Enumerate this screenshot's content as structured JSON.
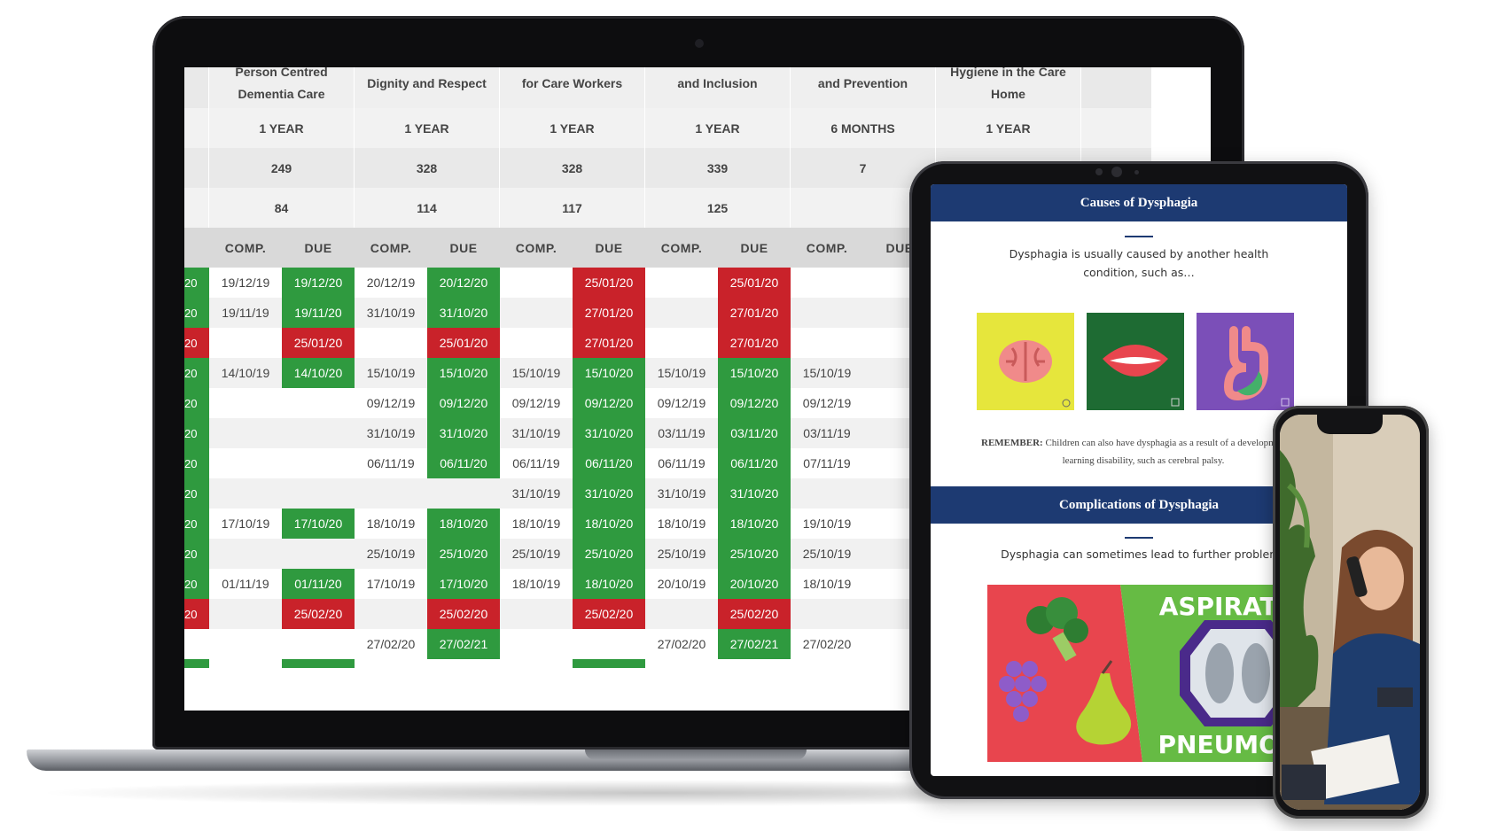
{
  "headers": [
    {
      "line1": "Person Centred",
      "line2": "Dementia Care"
    },
    {
      "line1": "Dignity and Respect",
      "line2": ""
    },
    {
      "line1": "for Care Workers",
      "line2": ""
    },
    {
      "line1": "and Inclusion",
      "line2": ""
    },
    {
      "line1": "and Prevention",
      "line2": ""
    },
    {
      "line1": "Hygiene in the Care",
      "line2": "Home"
    }
  ],
  "frequency": [
    "1 YEAR",
    "1 YEAR",
    "1 YEAR",
    "1 YEAR",
    "6 MONTHS",
    "1 YEAR"
  ],
  "totals": [
    "249",
    "328",
    "328",
    "339",
    "7",
    ""
  ],
  "counts": [
    "84",
    "114",
    "117",
    "125",
    "",
    ""
  ],
  "sub_headers": {
    "comp": "COMP.",
    "due": "DUE"
  },
  "rows": [
    {
      "lead": "20",
      "cells": [
        [
          "19/12/19",
          "19/12/20",
          "g"
        ],
        [
          "20/12/19",
          "20/12/20",
          "g"
        ],
        [
          "",
          "25/01/20",
          "r"
        ],
        [
          "",
          "25/01/20",
          "r"
        ],
        [
          "",
          ""
        ]
      ]
    },
    {
      "lead": "20",
      "cells": [
        [
          "19/11/19",
          "19/11/20",
          "g"
        ],
        [
          "31/10/19",
          "31/10/20",
          "g"
        ],
        [
          "",
          "27/01/20",
          "r"
        ],
        [
          "",
          "27/01/20",
          "r"
        ],
        [
          "",
          ""
        ]
      ]
    },
    {
      "lead": "20",
      "cells": [
        [
          "",
          "25/01/20",
          "r"
        ],
        [
          "",
          "25/01/20",
          "r"
        ],
        [
          "",
          "27/01/20",
          "r"
        ],
        [
          "",
          "27/01/20",
          "r"
        ],
        [
          "",
          ""
        ]
      ]
    },
    {
      "lead": "20",
      "cells": [
        [
          "14/10/19",
          "14/10/20",
          "g"
        ],
        [
          "15/10/19",
          "15/10/20",
          "g"
        ],
        [
          "15/10/19",
          "15/10/20",
          "g"
        ],
        [
          "15/10/19",
          "15/10/20",
          "g"
        ],
        [
          "15/10/19",
          ""
        ]
      ]
    },
    {
      "lead": "20",
      "cells": [
        [
          "",
          ""
        ],
        [
          "09/12/19",
          "09/12/20",
          "g"
        ],
        [
          "09/12/19",
          "09/12/20",
          "g"
        ],
        [
          "09/12/19",
          "09/12/20",
          "g"
        ],
        [
          "09/12/19",
          ""
        ]
      ]
    },
    {
      "lead": "20",
      "cells": [
        [
          "",
          ""
        ],
        [
          "31/10/19",
          "31/10/20",
          "g"
        ],
        [
          "31/10/19",
          "31/10/20",
          "g"
        ],
        [
          "03/11/19",
          "03/11/20",
          "g"
        ],
        [
          "03/11/19",
          ""
        ]
      ]
    },
    {
      "lead": "20",
      "cells": [
        [
          "",
          ""
        ],
        [
          "06/11/19",
          "06/11/20",
          "g"
        ],
        [
          "06/11/19",
          "06/11/20",
          "g"
        ],
        [
          "06/11/19",
          "06/11/20",
          "g"
        ],
        [
          "07/11/19",
          ""
        ]
      ]
    },
    {
      "lead": "20",
      "cells": [
        [
          "",
          ""
        ],
        [
          "",
          ""
        ],
        [
          "31/10/19",
          "31/10/20",
          "g"
        ],
        [
          "31/10/19",
          "31/10/20",
          "g"
        ],
        [
          "",
          ""
        ]
      ]
    },
    {
      "lead": "20",
      "cells": [
        [
          "17/10/19",
          "17/10/20",
          "g"
        ],
        [
          "18/10/19",
          "18/10/20",
          "g"
        ],
        [
          "18/10/19",
          "18/10/20",
          "g"
        ],
        [
          "18/10/19",
          "18/10/20",
          "g"
        ],
        [
          "19/10/19",
          ""
        ]
      ]
    },
    {
      "lead": "20",
      "cells": [
        [
          "",
          ""
        ],
        [
          "25/10/19",
          "25/10/20",
          "g"
        ],
        [
          "25/10/19",
          "25/10/20",
          "g"
        ],
        [
          "25/10/19",
          "25/10/20",
          "g"
        ],
        [
          "25/10/19",
          ""
        ]
      ]
    },
    {
      "lead": "20",
      "cells": [
        [
          "01/11/19",
          "01/11/20",
          "g"
        ],
        [
          "17/10/19",
          "17/10/20",
          "g"
        ],
        [
          "18/10/19",
          "18/10/20",
          "g"
        ],
        [
          "20/10/19",
          "20/10/20",
          "g"
        ],
        [
          "18/10/19",
          ""
        ]
      ]
    },
    {
      "lead": "20",
      "cells": [
        [
          "",
          "25/02/20",
          "r"
        ],
        [
          "",
          "25/02/20",
          "r"
        ],
        [
          "",
          "25/02/20",
          "r"
        ],
        [
          "",
          "25/02/20",
          "r"
        ],
        [
          "",
          ""
        ]
      ]
    },
    {
      "lead": "",
      "cells": [
        [
          "",
          ""
        ],
        [
          "27/02/20",
          "27/02/21",
          "g"
        ],
        [
          "",
          ""
        ],
        [
          "27/02/20",
          "27/02/21",
          "g"
        ],
        [
          "27/02/20",
          ""
        ]
      ]
    }
  ],
  "tablet": {
    "banner1": "Causes of Dysphagia",
    "intro": "Dysphagia is usually caused by another health condition, such as…",
    "remember_label": "REMEMBER:",
    "remember_text": "Children can also have dysphagia as a result of a developmental or learning disability, such as cerebral palsy.",
    "banner2": "Complications of Dysphagia",
    "intro2": "Dysphagia can sometimes lead to further problems",
    "poster_top": "ASPIRATION",
    "poster_bottom": "PNEUMONIA",
    "colors": {
      "navy": "#1d3a72",
      "yellow": "#e6e63c",
      "green": "#1e6b33",
      "purple": "#7b4fb8",
      "red": "#e8454e",
      "lime": "#66bb44"
    }
  },
  "icons": [
    "brain-icon",
    "mouth-icon",
    "stomach-icon",
    "broccoli-icon",
    "grapes-icon",
    "pear-icon",
    "lungs-xray-icon"
  ],
  "status_colors": {
    "completed_due": "#2f9a3f",
    "overdue": "#c9222a"
  }
}
